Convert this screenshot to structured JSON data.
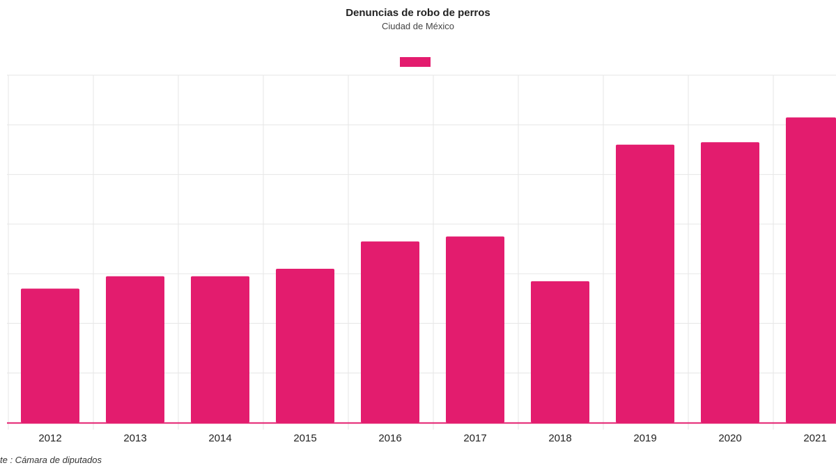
{
  "colors": {
    "bar": "#e31c6e",
    "grid": "#e6e6e6",
    "axis": "#e31c6e"
  },
  "chart_data": {
    "type": "bar",
    "title": "Denuncias de robo de perros",
    "subtitle": "Ciudad de México",
    "categories": [
      "2012",
      "2013",
      "2014",
      "2015",
      "2016",
      "2017",
      "2018",
      "2019",
      "2020",
      "2021"
    ],
    "values": [
      54,
      59,
      59,
      62,
      73,
      75,
      57,
      112,
      113,
      123
    ],
    "ylim": [
      0,
      140
    ],
    "grid": true,
    "legend": "top-center",
    "source": "te : Cámara de diputados"
  }
}
